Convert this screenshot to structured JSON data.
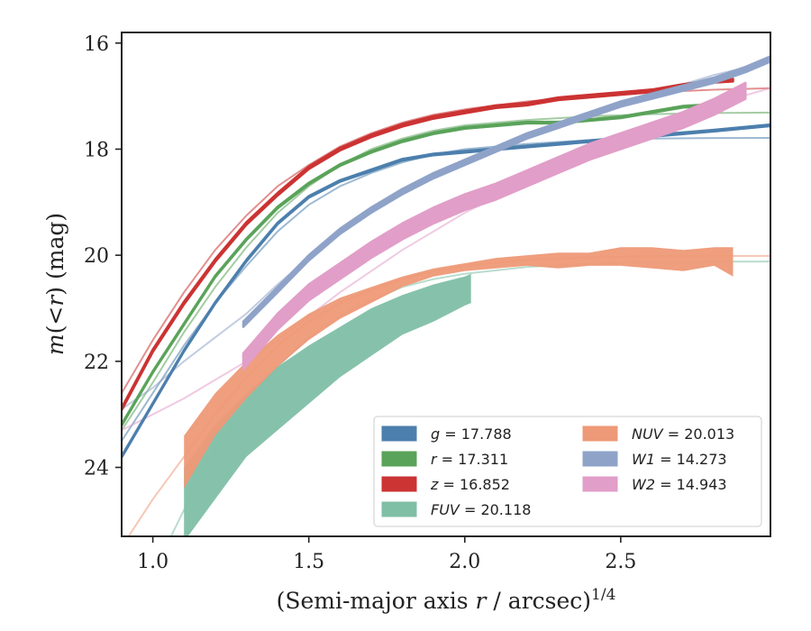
{
  "chart_data": {
    "type": "line",
    "xlabel": "(Semi-major axis r / arcsec)^1/4",
    "xlabel_parts": {
      "open": "(Semi-major axis ",
      "var": "r",
      "mid": " / arcsec)",
      "sup": "1/4"
    },
    "ylabel": "m(< r) (mag)",
    "ylabel_parts": {
      "m": "m",
      "inner": "(<",
      "r": "r",
      "rest": ") (mag)"
    },
    "xlim": [
      0.9,
      2.98
    ],
    "ylim": [
      25.3,
      15.8
    ],
    "y_inverted": true,
    "grid": false,
    "xticks": [
      1.0,
      1.5,
      2.0,
      2.5
    ],
    "xtick_labels": [
      "1.0",
      "1.5",
      "2.0",
      "2.5"
    ],
    "yticks": [
      16,
      18,
      20,
      22,
      24
    ],
    "ytick_labels": [
      "16",
      "18",
      "20",
      "22",
      "24"
    ],
    "legend": {
      "placement": "lower-right",
      "columns": 2
    },
    "series": [
      {
        "name": "g = 17.788",
        "label_var": "g",
        "label_value": "= 17.788",
        "color": "#4c7fad",
        "kind": "line",
        "width": 0.03,
        "x": [
          0.9,
          1.0,
          1.1,
          1.2,
          1.3,
          1.4,
          1.5,
          1.6,
          1.7,
          1.8,
          1.9,
          2.0,
          2.1,
          2.2,
          2.3,
          2.4,
          2.5,
          2.6,
          2.7,
          2.8,
          2.98
        ],
        "y": [
          23.8,
          22.8,
          21.8,
          20.9,
          20.1,
          19.4,
          18.9,
          18.6,
          18.4,
          18.2,
          18.1,
          18.05,
          18.0,
          17.95,
          17.9,
          17.85,
          17.8,
          17.75,
          17.7,
          17.65,
          17.55
        ],
        "model_x": [
          0.9,
          1.0,
          1.1,
          1.2,
          1.3,
          1.4,
          1.5,
          1.6,
          1.7,
          1.8,
          1.9,
          2.0,
          2.2,
          2.4,
          2.6,
          2.8,
          2.98
        ],
        "model_y": [
          23.5,
          22.6,
          21.7,
          20.9,
          20.2,
          19.55,
          19.05,
          18.7,
          18.45,
          18.25,
          18.1,
          18.0,
          17.9,
          17.83,
          17.8,
          17.79,
          17.788
        ]
      },
      {
        "name": "r = 17.311",
        "label_var": "r",
        "label_value": "= 17.311",
        "color": "#5aa35a",
        "kind": "line",
        "width": 0.03,
        "x": [
          0.9,
          1.0,
          1.1,
          1.2,
          1.3,
          1.4,
          1.5,
          1.6,
          1.7,
          1.8,
          1.9,
          2.0,
          2.1,
          2.2,
          2.3,
          2.4,
          2.5,
          2.6,
          2.7,
          2.76
        ],
        "y": [
          23.2,
          22.2,
          21.3,
          20.4,
          19.7,
          19.1,
          18.65,
          18.3,
          18.05,
          17.85,
          17.7,
          17.6,
          17.55,
          17.5,
          17.5,
          17.45,
          17.4,
          17.3,
          17.2,
          17.18
        ],
        "model_x": [
          0.9,
          1.0,
          1.1,
          1.2,
          1.3,
          1.4,
          1.5,
          1.6,
          1.7,
          1.8,
          1.9,
          2.0,
          2.2,
          2.4,
          2.6,
          2.8,
          2.98
        ],
        "model_y": [
          23.3,
          22.4,
          21.45,
          20.6,
          19.85,
          19.2,
          18.7,
          18.3,
          18.0,
          17.8,
          17.65,
          17.55,
          17.45,
          17.38,
          17.34,
          17.32,
          17.311
        ]
      },
      {
        "name": "z = 16.852",
        "label_var": "z",
        "label_value": "= 16.852",
        "color": "#cc3333",
        "kind": "line",
        "width": 0.05,
        "x": [
          0.9,
          1.0,
          1.1,
          1.2,
          1.3,
          1.4,
          1.5,
          1.6,
          1.7,
          1.8,
          1.9,
          2.0,
          2.1,
          2.2,
          2.3,
          2.4,
          2.5,
          2.6,
          2.7,
          2.8,
          2.86
        ],
        "y": [
          22.9,
          21.8,
          20.9,
          20.1,
          19.4,
          18.85,
          18.35,
          18.0,
          17.75,
          17.55,
          17.4,
          17.3,
          17.2,
          17.15,
          17.05,
          17.0,
          16.95,
          16.9,
          16.8,
          16.72,
          16.7
        ],
        "model_x": [
          0.9,
          1.0,
          1.1,
          1.2,
          1.3,
          1.4,
          1.5,
          1.6,
          1.7,
          1.8,
          1.9,
          2.0,
          2.2,
          2.4,
          2.6,
          2.8,
          2.98
        ],
        "model_y": [
          22.6,
          21.6,
          20.7,
          19.9,
          19.25,
          18.7,
          18.3,
          17.95,
          17.7,
          17.5,
          17.35,
          17.25,
          17.1,
          17.0,
          16.93,
          16.88,
          16.852
        ]
      },
      {
        "name": "FUV = 20.118",
        "label_var": "FUV",
        "label_value": "= 20.118",
        "color": "#7fbfa6",
        "kind": "band",
        "x": [
          1.1,
          1.2,
          1.3,
          1.4,
          1.5,
          1.6,
          1.7,
          1.8,
          1.9,
          2.0,
          2.02
        ],
        "y_upper": [
          24.0,
          23.2,
          22.6,
          22.1,
          21.7,
          21.35,
          21.0,
          20.75,
          20.55,
          20.4,
          20.35
        ],
        "y_lower": [
          25.4,
          24.6,
          23.8,
          23.3,
          22.8,
          22.3,
          21.9,
          21.5,
          21.25,
          20.95,
          20.9
        ],
        "model_x": [
          0.9,
          1.0,
          1.1,
          1.2,
          1.3,
          1.4,
          1.5,
          1.6,
          1.7,
          1.8,
          1.9,
          2.0,
          2.2,
          2.4,
          2.6,
          2.8,
          2.98
        ],
        "model_y": [
          27.5,
          26.0,
          24.8,
          23.7,
          22.8,
          22.1,
          21.55,
          21.15,
          20.85,
          20.6,
          20.45,
          20.35,
          20.22,
          20.16,
          20.13,
          20.12,
          20.118
        ]
      },
      {
        "name": "NUV = 20.013",
        "label_var": "NUV",
        "label_value": "= 20.013",
        "color": "#ee9977",
        "kind": "band",
        "x": [
          1.1,
          1.2,
          1.3,
          1.4,
          1.5,
          1.6,
          1.7,
          1.8,
          1.9,
          2.0,
          2.1,
          2.2,
          2.3,
          2.4,
          2.5,
          2.6,
          2.7,
          2.8,
          2.86
        ],
        "y_upper": [
          23.4,
          22.6,
          22.0,
          21.5,
          21.1,
          20.8,
          20.6,
          20.4,
          20.25,
          20.15,
          20.05,
          20.0,
          19.95,
          19.95,
          19.85,
          19.85,
          19.9,
          19.85,
          19.85
        ],
        "y_lower": [
          24.4,
          23.4,
          22.7,
          22.1,
          21.6,
          21.2,
          20.9,
          20.6,
          20.4,
          20.3,
          20.25,
          20.2,
          20.25,
          20.2,
          20.2,
          20.25,
          20.3,
          20.2,
          20.4
        ],
        "model_x": [
          0.9,
          1.0,
          1.1,
          1.2,
          1.3,
          1.4,
          1.5,
          1.6,
          1.7,
          1.8,
          1.9,
          2.0,
          2.2,
          2.4,
          2.6,
          2.8,
          2.98
        ],
        "model_y": [
          25.5,
          24.6,
          23.8,
          23.0,
          22.3,
          21.7,
          21.25,
          20.9,
          20.65,
          20.45,
          20.3,
          20.2,
          20.09,
          20.04,
          20.02,
          20.015,
          20.013
        ]
      },
      {
        "name": "W1 = 14.273",
        "label_var": "W1",
        "label_value": "= 14.273",
        "color": "#8fa3c9",
        "kind": "line",
        "width": 0.1,
        "x": [
          1.29,
          1.4,
          1.5,
          1.6,
          1.7,
          1.8,
          1.9,
          2.0,
          2.1,
          2.2,
          2.3,
          2.4,
          2.5,
          2.6,
          2.7,
          2.8,
          2.9,
          2.98
        ],
        "y": [
          21.3,
          20.65,
          20.05,
          19.55,
          19.15,
          18.8,
          18.5,
          18.25,
          18.0,
          17.75,
          17.55,
          17.35,
          17.15,
          17.0,
          16.85,
          16.7,
          16.5,
          16.3
        ],
        "model_x": [
          0.9,
          1.0,
          1.1,
          1.2,
          1.3,
          1.4,
          1.5,
          1.6,
          1.7,
          1.8,
          1.9,
          2.0,
          2.2,
          2.4,
          2.6,
          2.8,
          2.98
        ],
        "model_y": [
          22.9,
          22.5,
          22.0,
          21.55,
          21.1,
          20.55,
          20.05,
          19.55,
          19.1,
          18.75,
          18.45,
          18.2,
          17.75,
          17.3,
          16.95,
          16.6,
          16.35
        ]
      },
      {
        "name": "W2 = 14.943",
        "label_var": "W2",
        "label_value": "= 14.943",
        "color": "#e19ec8",
        "kind": "line",
        "width": 0.3,
        "x": [
          1.29,
          1.4,
          1.5,
          1.6,
          1.7,
          1.8,
          1.9,
          2.0,
          2.1,
          2.2,
          2.3,
          2.4,
          2.5,
          2.6,
          2.7,
          2.8,
          2.9
        ],
        "y": [
          22.0,
          21.25,
          20.7,
          20.3,
          19.9,
          19.55,
          19.25,
          19.0,
          18.8,
          18.55,
          18.3,
          18.05,
          17.85,
          17.65,
          17.45,
          17.2,
          16.9
        ],
        "model_x": [
          0.9,
          1.0,
          1.1,
          1.2,
          1.3,
          1.4,
          1.5,
          1.6,
          1.7,
          1.8,
          1.9,
          2.0,
          2.2,
          2.4,
          2.6,
          2.8,
          2.98
        ],
        "model_y": [
          23.3,
          23.0,
          22.7,
          22.35,
          22.0,
          21.6,
          21.15,
          20.7,
          20.3,
          19.9,
          19.55,
          19.2,
          18.6,
          18.05,
          17.6,
          17.15,
          16.85
        ]
      }
    ]
  }
}
